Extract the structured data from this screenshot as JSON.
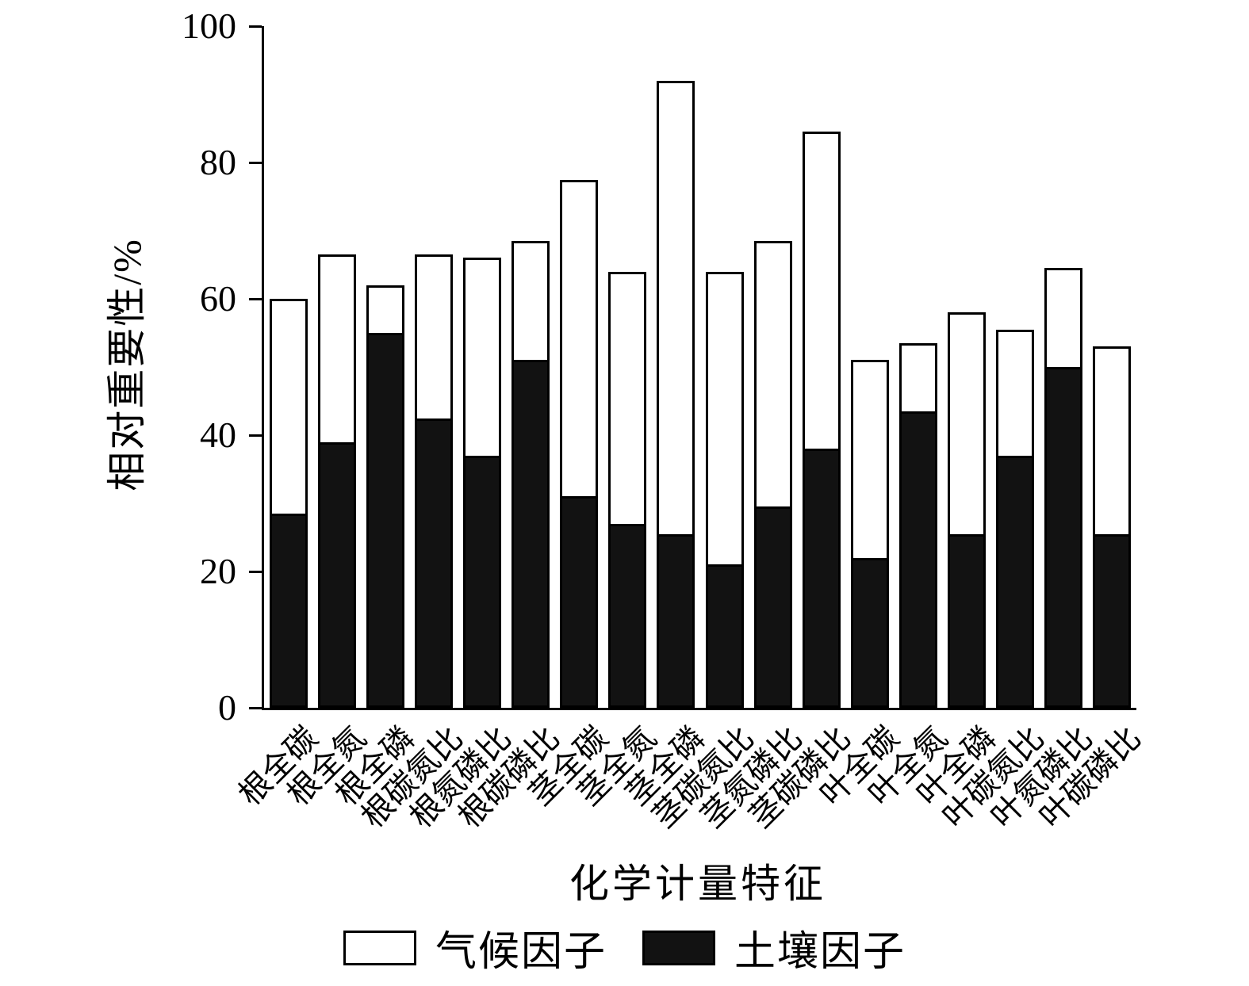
{
  "chart_data": {
    "type": "bar",
    "stacked": true,
    "title": "",
    "xlabel": "化学计量特征",
    "ylabel": "相对重要性/%",
    "ylim": [
      0,
      100
    ],
    "yticks": [
      0,
      20,
      40,
      60,
      80,
      100
    ],
    "grid": false,
    "legend_position": "bottom",
    "categories": [
      "根全碳",
      "根全氮",
      "根全磷",
      "根碳氮比",
      "根氮磷比",
      "根碳磷比",
      "茎全碳",
      "茎全氮",
      "茎全磷",
      "茎碳氮比",
      "茎氮磷比",
      "茎碳磷比",
      "叶全碳",
      "叶全氮",
      "叶全磷",
      "叶碳氮比",
      "叶氮磷比",
      "叶碳磷比"
    ],
    "series": [
      {
        "name": "土壤因子",
        "color": "#121212",
        "values": [
          28.5,
          39,
          55,
          42.5,
          37,
          51,
          31,
          27,
          25.5,
          21,
          29.5,
          38,
          22,
          43.5,
          25.5,
          37,
          50,
          25.5
        ]
      },
      {
        "name": "气候因子",
        "color": "#ffffff",
        "values": [
          31.5,
          27.5,
          7,
          24,
          29,
          17.5,
          46.5,
          37,
          66.5,
          43,
          39,
          46.5,
          29,
          10,
          32.5,
          18.5,
          14.5,
          27.5
        ]
      }
    ],
    "totals": [
      60,
      66.5,
      62,
      66.5,
      66,
      68.5,
      77.5,
      64,
      92,
      64,
      68.5,
      84.5,
      51,
      53.5,
      58,
      55.5,
      64.5,
      53
    ],
    "legend": [
      {
        "label": "气候因子",
        "fill": "#ffffff"
      },
      {
        "label": "土壤因子",
        "fill": "#121212"
      }
    ]
  }
}
